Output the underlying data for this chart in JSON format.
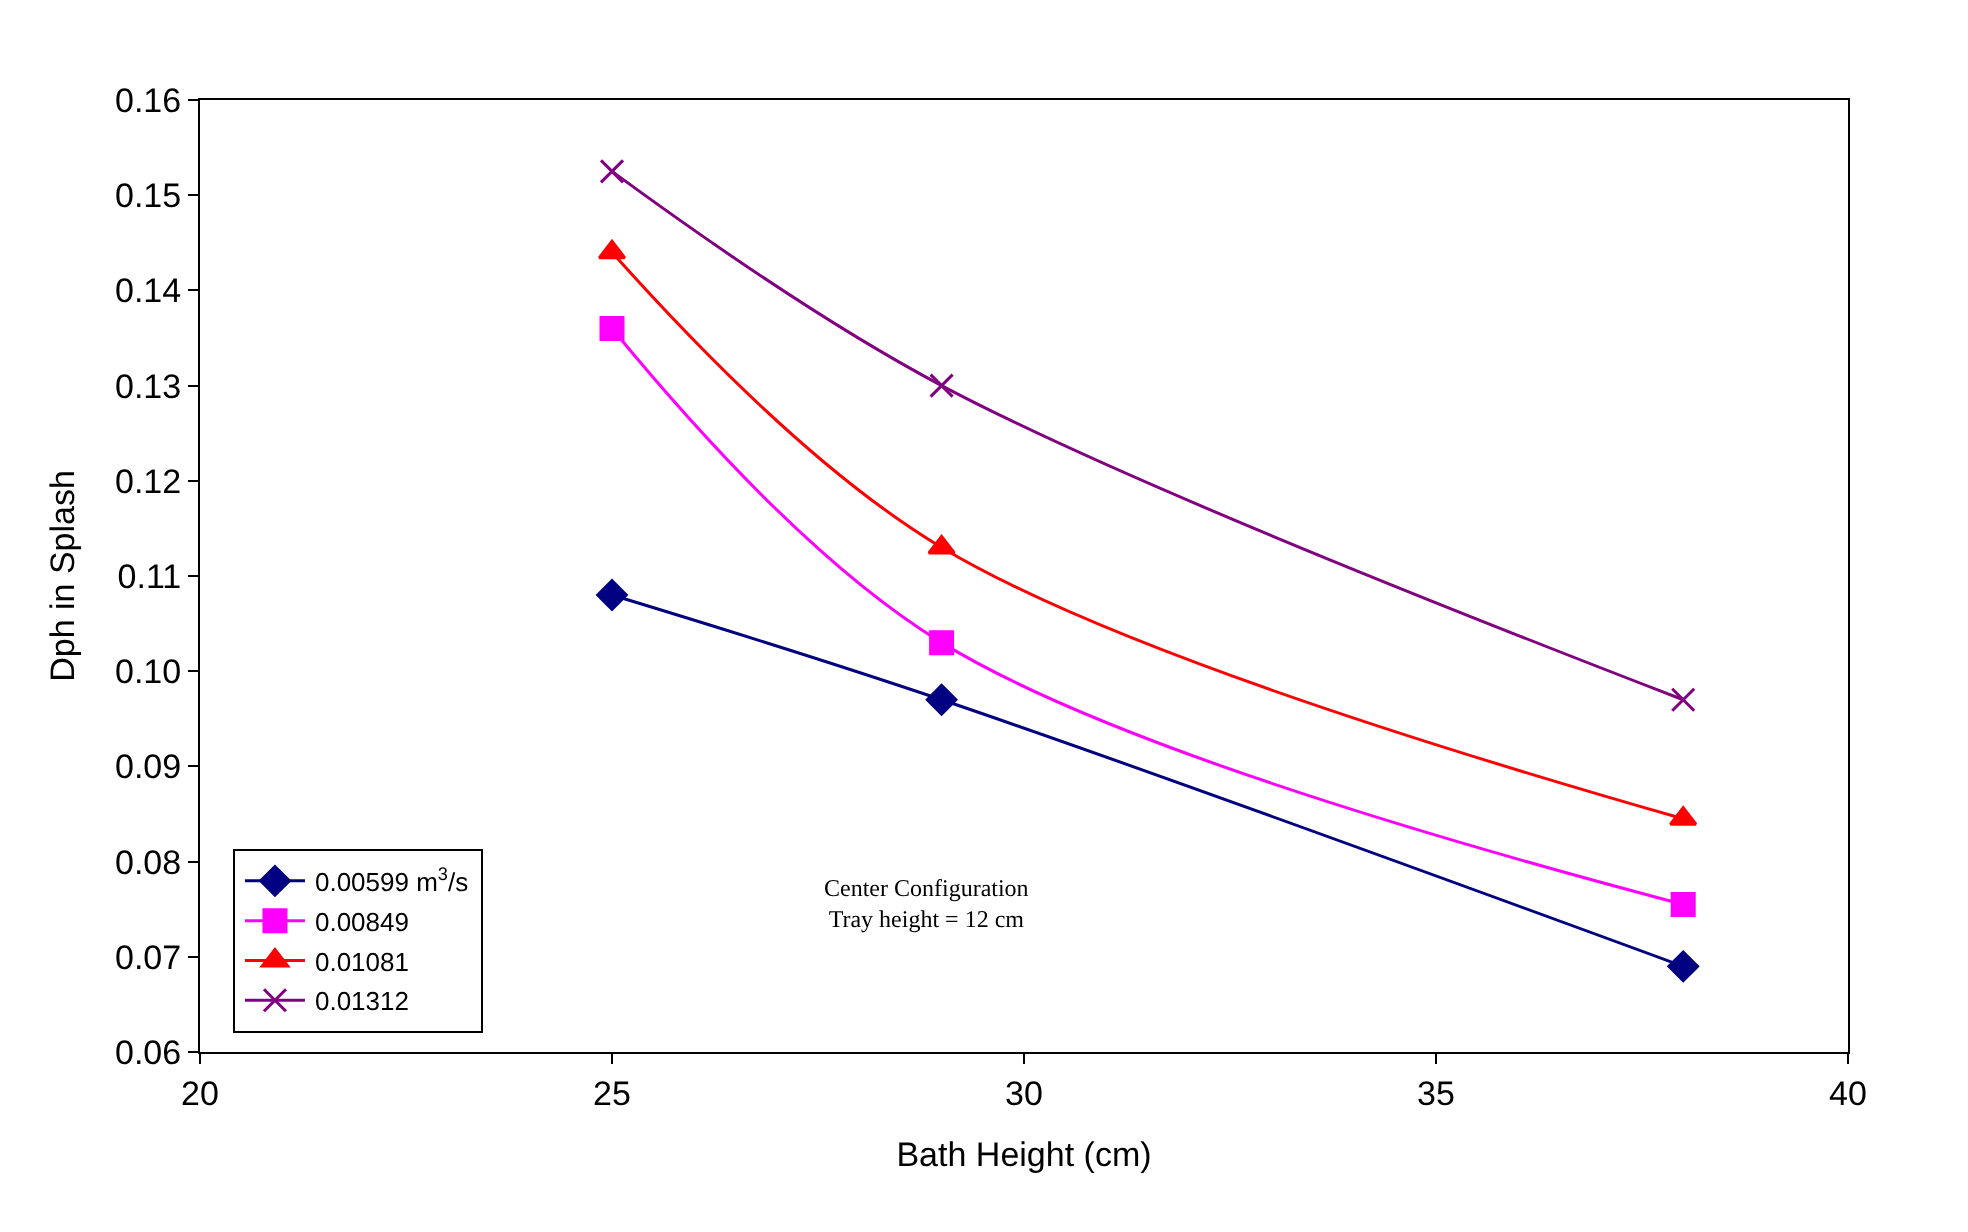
{
  "chart_data": {
    "type": "line",
    "xlabel": "Bath Height (cm)",
    "ylabel": "Dph in Splash",
    "xlim": [
      20,
      40
    ],
    "xticks": [
      20,
      25,
      30,
      35,
      40
    ],
    "ylim": [
      0.06,
      0.16
    ],
    "yticks": [
      0.06,
      0.07,
      0.08,
      0.09,
      {
        "value": 0.1,
        "label": "0.10"
      },
      0.11,
      0.12,
      0.13,
      0.14,
      0.15,
      0.16
    ],
    "x": [
      25,
      29,
      38
    ],
    "grid": false,
    "legend": "bottom left",
    "line_style": "solid",
    "series": [
      {
        "name": "0.00599 m$^{3}$/s",
        "color": "#000080",
        "marker": "diamond",
        "values": [
          0.108,
          0.097,
          0.069
        ]
      },
      {
        "name": "0.00849",
        "color": "#ff00ff",
        "marker": "square",
        "values": [
          0.136,
          0.103,
          0.0755
        ]
      },
      {
        "name": "0.01081",
        "color": "#ff0000",
        "marker": "triangle",
        "values": [
          0.144,
          0.113,
          0.0845
        ]
      },
      {
        "name": "0.01312",
        "color": "#800080",
        "marker": "cross",
        "values": [
          0.1525,
          0.13,
          0.097
        ]
      }
    ],
    "annotations": [
      "Center Configuration\nTray height = 12 cm"
    ]
  }
}
